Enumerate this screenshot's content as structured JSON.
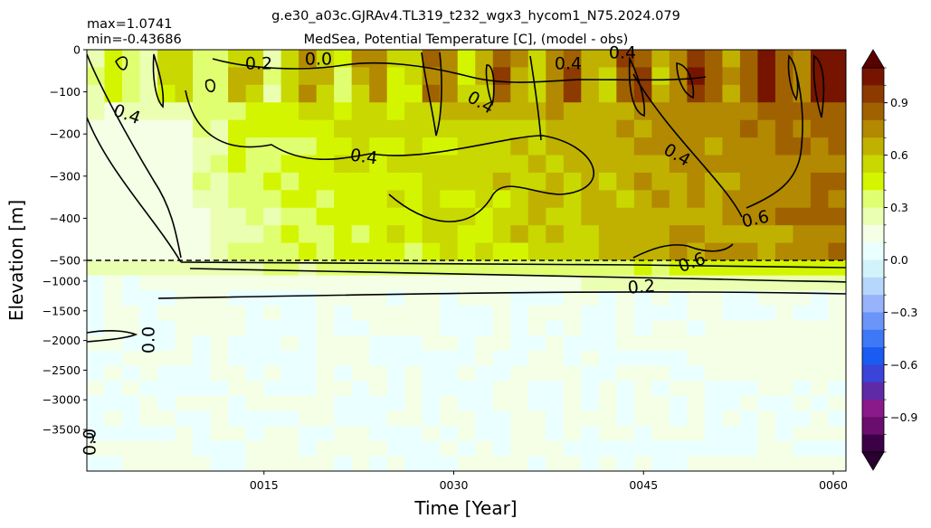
{
  "chart_data": {
    "type": "heatmap",
    "title": "g.e30_a03c.GJRAv4.TL319_t232_wgx3_hycom1_N75.2024.079",
    "subtitle": "MedSea, Potential Temperature [C], (model - obs)",
    "max_label": "max=1.0741",
    "min_label": "min=-0.43686",
    "xlabel": "Time [Year]",
    "ylabel": "Elevation [m]",
    "x_ticks": [
      "0015",
      "0030",
      "0045",
      "0060"
    ],
    "y_ticks_upper": [
      "0",
      "−100",
      "−200",
      "−300",
      "−400",
      "−500"
    ],
    "y_ticks_lower": [
      "−1000",
      "−1500",
      "−2000",
      "−2500",
      "−3000",
      "−3500"
    ],
    "xlim": [
      1,
      61
    ],
    "colorbar": {
      "range": [
        -1.1,
        1.1
      ],
      "ticks": [
        "0.9",
        "0.6",
        "0.3",
        "0.0",
        "−0.3",
        "−0.6",
        "−0.9"
      ],
      "tick_values": [
        0.9,
        0.6,
        0.3,
        0.0,
        -0.3,
        -0.6,
        -0.9
      ],
      "extend": "both"
    },
    "contour_labels": [
      {
        "text": "0.2"
      },
      {
        "text": "0.0"
      },
      {
        "text": "0.4"
      },
      {
        "text": "0.4"
      },
      {
        "text": "0.4"
      },
      {
        "text": "0.4"
      },
      {
        "text": "0.4"
      },
      {
        "text": "0.4"
      },
      {
        "text": "0.6"
      },
      {
        "text": "0.6"
      },
      {
        "text": "0.2"
      },
      {
        "text": "0.0"
      },
      {
        "text": "0.0"
      }
    ],
    "grid": false,
    "upper_depth_break": -500
  }
}
